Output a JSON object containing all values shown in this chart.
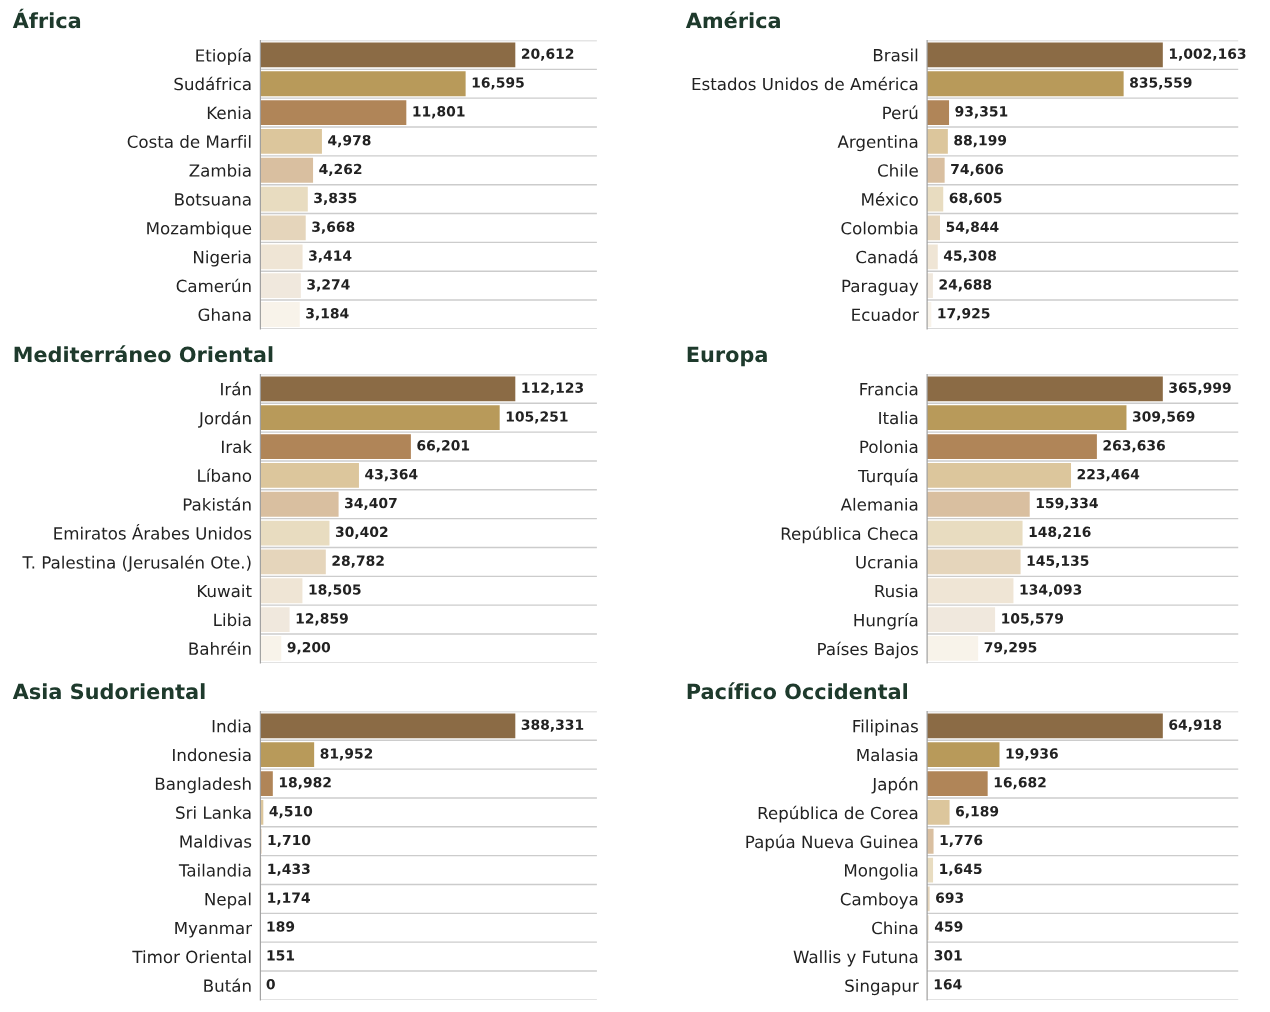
{
  "chart_data": [
    {
      "type": "bar",
      "orientation": "horizontal",
      "title": "África",
      "categories": [
        "Etiopía",
        "Sudáfrica",
        "Kenia",
        "Costa de Marfil",
        "Zambia",
        "Botsuana",
        "Mozambique",
        "Nigeria",
        "Camerún",
        "Ghana"
      ],
      "values": [
        20612,
        16595,
        11801,
        4978,
        4262,
        3835,
        3668,
        3414,
        3274,
        3184
      ],
      "value_labels": [
        "20,612",
        "16,595",
        "11,801",
        "4,978",
        "4,262",
        "3,835",
        "3,668",
        "3,414",
        "3,274",
        "3,184"
      ],
      "colors": [
        "#8b6b45",
        "#b89a5a",
        "#b08558",
        "#dcc69c",
        "#d9bfa0",
        "#e8dcc0",
        "#e5d5bb",
        "#efe5d5",
        "#f0e8dd",
        "#f8f3ea"
      ],
      "grid": "y"
    },
    {
      "type": "bar",
      "orientation": "horizontal",
      "title": "América",
      "categories": [
        "Brasil",
        "Estados Unidos de América",
        "Perú",
        "Argentina",
        "Chile",
        "México",
        "Colombia",
        "Canadá",
        "Paraguay",
        "Ecuador"
      ],
      "values": [
        1002163,
        835559,
        93351,
        88199,
        74606,
        68605,
        54844,
        45308,
        24688,
        17925
      ],
      "value_labels": [
        "1,002,163",
        "835,559",
        "93,351",
        "88,199",
        "74,606",
        "68,605",
        "54,844",
        "45,308",
        "24,688",
        "17,925"
      ],
      "colors": [
        "#8b6b45",
        "#b89a5a",
        "#b08558",
        "#dcc69c",
        "#d9bfa0",
        "#e8dcc0",
        "#e5d5bb",
        "#efe5d5",
        "#f0e8dd",
        "#f8f3ea"
      ],
      "grid": "y"
    },
    {
      "type": "bar",
      "orientation": "horizontal",
      "title": "Mediterráneo Oriental",
      "categories": [
        "Irán",
        "Jordán",
        "Irak",
        "Líbano",
        "Pakistán",
        "Emiratos Árabes Unidos",
        "T. Palestina (Jerusalén Ote.)",
        "Kuwait",
        "Libia",
        "Bahréin"
      ],
      "values": [
        112123,
        105251,
        66201,
        43364,
        34407,
        30402,
        28782,
        18505,
        12859,
        9200
      ],
      "value_labels": [
        "112,123",
        "105,251",
        "66,201",
        "43,364",
        "34,407",
        "30,402",
        "28,782",
        "18,505",
        "12,859",
        "9,200"
      ],
      "colors": [
        "#8b6b45",
        "#b89a5a",
        "#b08558",
        "#dcc69c",
        "#d9bfa0",
        "#e8dcc0",
        "#e5d5bb",
        "#efe5d5",
        "#f0e8dd",
        "#f8f3ea"
      ],
      "grid": "y"
    },
    {
      "type": "bar",
      "orientation": "horizontal",
      "title": "Europa",
      "categories": [
        "Francia",
        "Italia",
        "Polonia",
        "Turquía",
        "Alemania",
        "República Checa",
        "Ucrania",
        "Rusia",
        "Hungría",
        "Países Bajos"
      ],
      "values": [
        365999,
        309569,
        263636,
        223464,
        159334,
        148216,
        145135,
        134093,
        105579,
        79295
      ],
      "value_labels": [
        "365,999",
        "309,569",
        "263,636",
        "223,464",
        "159,334",
        "148,216",
        "145,135",
        "134,093",
        "105,579",
        "79,295"
      ],
      "colors": [
        "#8b6b45",
        "#b89a5a",
        "#b08558",
        "#dcc69c",
        "#d9bfa0",
        "#e8dcc0",
        "#e5d5bb",
        "#efe5d5",
        "#f0e8dd",
        "#f8f3ea"
      ],
      "grid": "y"
    },
    {
      "type": "bar",
      "orientation": "horizontal",
      "title": "Asia Sudoriental",
      "categories": [
        "India",
        "Indonesia",
        "Bangladesh",
        "Sri Lanka",
        "Maldivas",
        "Tailandia",
        "Nepal",
        "Myanmar",
        "Timor Oriental",
        "Bután"
      ],
      "values": [
        388331,
        81952,
        18982,
        4510,
        1710,
        1433,
        1174,
        189,
        151,
        0
      ],
      "value_labels": [
        "388,331",
        "81,952",
        "18,982",
        "4,510",
        "1,710",
        "1,433",
        "1,174",
        "189",
        "151",
        "0"
      ],
      "colors": [
        "#8b6b45",
        "#b89a5a",
        "#b08558",
        "#dcc69c",
        "#d9bfa0",
        "#e8dcc0",
        "#e5d5bb",
        "#efe5d5",
        "#f0e8dd",
        "#f8f3ea"
      ],
      "grid": "y"
    },
    {
      "type": "bar",
      "orientation": "horizontal",
      "title": "Pacífico Occidental",
      "categories": [
        "Filipinas",
        "Malasia",
        "Japón",
        "República de Corea",
        "Papúa Nueva Guinea",
        "Mongolia",
        "Camboya",
        "China",
        "Wallis y Futuna",
        "Singapur"
      ],
      "values": [
        64918,
        19936,
        16682,
        6189,
        1776,
        1645,
        693,
        459,
        301,
        164
      ],
      "value_labels": [
        "64,918",
        "19,936",
        "16,682",
        "6,189",
        "1,776",
        "1,645",
        "693",
        "459",
        "301",
        "164"
      ],
      "colors": [
        "#8b6b45",
        "#b89a5a",
        "#b08558",
        "#dcc69c",
        "#d9bfa0",
        "#e8dcc0",
        "#e5d5bb",
        "#efe5d5",
        "#f0e8dd",
        "#f8f3ea"
      ],
      "grid": "y"
    }
  ]
}
